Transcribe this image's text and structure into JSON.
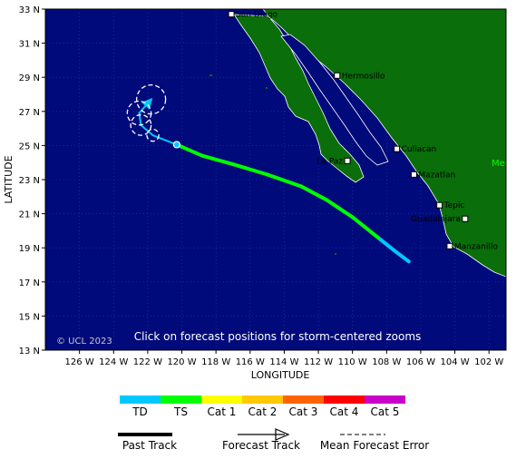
{
  "map": {
    "lon_range": [
      -128,
      -101
    ],
    "lat_range": [
      13,
      33
    ],
    "ocean_color": "#000a7a",
    "land_color": "#0a6e0a",
    "grid_color": "#2b3aa8",
    "lon_ticks": [
      {
        "value": -126,
        "label": "126 W"
      },
      {
        "value": -124,
        "label": "124 W"
      },
      {
        "value": -122,
        "label": "122 W"
      },
      {
        "value": -120,
        "label": "120 W"
      },
      {
        "value": -118,
        "label": "118 W"
      },
      {
        "value": -116,
        "label": "116 W"
      },
      {
        "value": -114,
        "label": "114 W"
      },
      {
        "value": -112,
        "label": "112 W"
      },
      {
        "value": -110,
        "label": "110 W"
      },
      {
        "value": -108,
        "label": "108 W"
      },
      {
        "value": -106,
        "label": "106 W"
      },
      {
        "value": -104,
        "label": "104 W"
      },
      {
        "value": -102,
        "label": "102 W"
      }
    ],
    "lat_ticks": [
      {
        "value": 33,
        "label": "33 N"
      },
      {
        "value": 31,
        "label": "31 N"
      },
      {
        "value": 29,
        "label": "29 N"
      },
      {
        "value": 27,
        "label": "27 N"
      },
      {
        "value": 25,
        "label": "25 N"
      },
      {
        "value": 23,
        "label": "23 N"
      },
      {
        "value": 21,
        "label": "21 N"
      },
      {
        "value": 19,
        "label": "19 N"
      },
      {
        "value": 17,
        "label": "17 N"
      },
      {
        "value": 15,
        "label": "15 N"
      },
      {
        "value": 13,
        "label": "13 N"
      }
    ],
    "x_axis_title": "LONGITUDE",
    "y_axis_title": "LATITUDE",
    "overlay_text": "Click on forecast positions for storm-centered zooms",
    "copyright": "© UCL 2023",
    "country_label": "Me",
    "cities": [
      {
        "name": "San Diego",
        "lon": -117.1,
        "lat": 32.7
      },
      {
        "name": "Hermosillo",
        "lon": -110.9,
        "lat": 29.1
      },
      {
        "name": "Culiacan",
        "lon": -107.4,
        "lat": 24.8
      },
      {
        "name": "La Paz",
        "lon": -110.3,
        "lat": 24.1
      },
      {
        "name": "Mazatlan",
        "lon": -106.4,
        "lat": 23.3
      },
      {
        "name": "Tepic",
        "lon": -104.9,
        "lat": 21.5
      },
      {
        "name": "Guadalajara",
        "lon": -103.4,
        "lat": 20.7
      },
      {
        "name": "Manzanillo",
        "lon": -104.3,
        "lat": 19.1
      }
    ],
    "past_track": [
      {
        "lon": -106.7,
        "lat": 18.2,
        "cat": "TD"
      },
      {
        "lon": -107.5,
        "lat": 18.8,
        "cat": "TD"
      },
      {
        "lon": -108.5,
        "lat": 19.6,
        "cat": "TS"
      },
      {
        "lon": -110.0,
        "lat": 20.8,
        "cat": "TS"
      },
      {
        "lon": -111.5,
        "lat": 21.8,
        "cat": "TS"
      },
      {
        "lon": -113.0,
        "lat": 22.6,
        "cat": "TS"
      },
      {
        "lon": -115.0,
        "lat": 23.3,
        "cat": "TS"
      },
      {
        "lon": -117.0,
        "lat": 23.9,
        "cat": "TS"
      },
      {
        "lon": -118.8,
        "lat": 24.4,
        "cat": "TS"
      },
      {
        "lon": -120.3,
        "lat": 25.05,
        "cat": "TD"
      }
    ],
    "current_position": {
      "lon": -120.3,
      "lat": 25.05
    },
    "forecast_track": [
      {
        "lon": -120.3,
        "lat": 25.05
      },
      {
        "lon": -121.7,
        "lat": 25.6
      },
      {
        "lon": -122.4,
        "lat": 26.2
      },
      {
        "lon": -122.5,
        "lat": 26.9
      },
      {
        "lon": -121.8,
        "lat": 27.7
      }
    ],
    "forecast_positions": [
      {
        "lon": -121.7,
        "lat": 25.6,
        "error_radius": 0.35
      },
      {
        "lon": -122.4,
        "lat": 26.2,
        "error_radius": 0.6
      },
      {
        "lon": -122.5,
        "lat": 26.9,
        "error_radius": 0.7
      },
      {
        "lon": -121.8,
        "lat": 27.7,
        "error_radius": 0.85
      }
    ]
  },
  "legend": {
    "categories": [
      {
        "label": "TD",
        "color": "#00c8ff"
      },
      {
        "label": "TS",
        "color": "#00ff00"
      },
      {
        "label": "Cat 1",
        "color": "#ffff00"
      },
      {
        "label": "Cat 2",
        "color": "#ffc800"
      },
      {
        "label": "Cat 3",
        "color": "#ff6400"
      },
      {
        "label": "Cat 4",
        "color": "#ff0000"
      },
      {
        "label": "Cat 5",
        "color": "#c800c8"
      }
    ],
    "past_track_label": "Past Track",
    "forecast_track_label": "Forecast Track",
    "mean_error_label": "Mean Forecast Error"
  }
}
